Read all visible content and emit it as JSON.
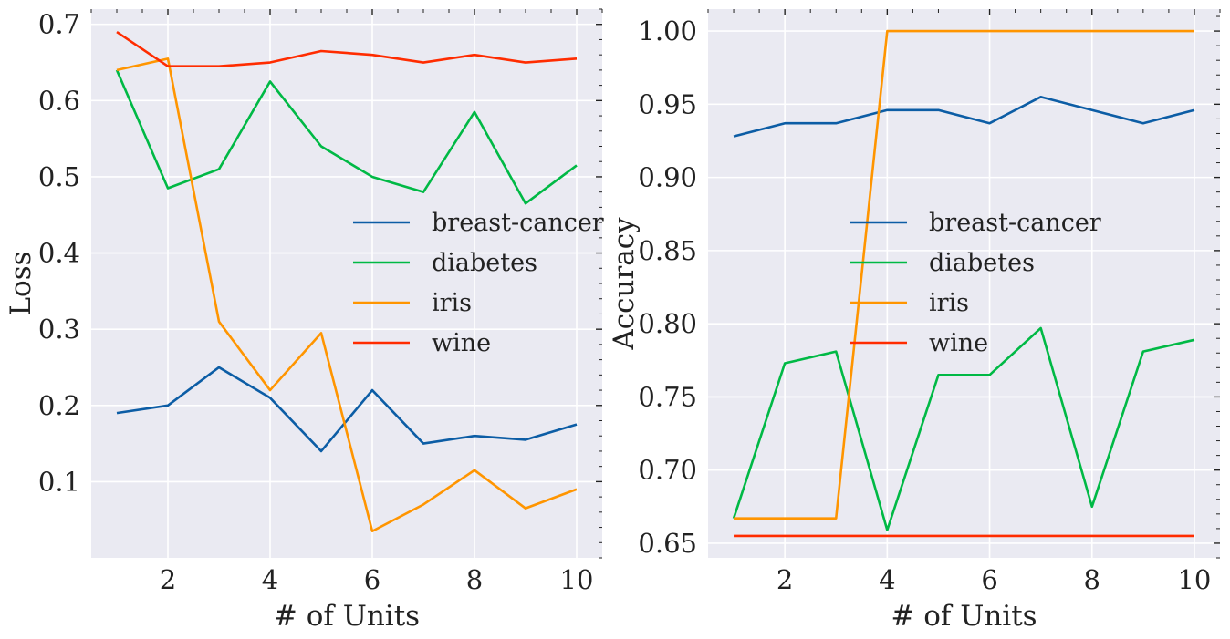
{
  "chart_data": [
    {
      "type": "line",
      "xlabel": "# of Units",
      "ylabel": "Loss",
      "xlim": [
        0.5,
        10.5
      ],
      "ylim": [
        0.0,
        0.72
      ],
      "xticks": [
        2,
        4,
        6,
        8,
        10
      ],
      "xtick_labels": [
        "2",
        "4",
        "6",
        "8",
        "10"
      ],
      "yticks": [
        0.1,
        0.2,
        0.3,
        0.4,
        0.5,
        0.6,
        0.7
      ],
      "ytick_labels": [
        "0.1",
        "0.2",
        "0.3",
        "0.4",
        "0.5",
        "0.6",
        "0.7"
      ],
      "grid": true,
      "legend_position": "center-right",
      "x": [
        1,
        2,
        3,
        4,
        5,
        6,
        7,
        8,
        9,
        10
      ],
      "series": [
        {
          "name": "breast-cancer",
          "color": "#0C5DA5",
          "values": [
            0.19,
            0.2,
            0.25,
            0.21,
            0.14,
            0.22,
            0.15,
            0.16,
            0.155,
            0.175
          ]
        },
        {
          "name": "diabetes",
          "color": "#00B945",
          "values": [
            0.64,
            0.485,
            0.51,
            0.625,
            0.54,
            0.5,
            0.48,
            0.585,
            0.465,
            0.515
          ]
        },
        {
          "name": "iris",
          "color": "#FF9500",
          "values": [
            0.64,
            0.655,
            0.31,
            0.22,
            0.295,
            0.035,
            0.07,
            0.115,
            0.065,
            0.09
          ]
        },
        {
          "name": "wine",
          "color": "#FF2C00",
          "values": [
            0.69,
            0.645,
            0.645,
            0.65,
            0.665,
            0.66,
            0.65,
            0.66,
            0.65,
            0.655
          ]
        }
      ]
    },
    {
      "type": "line",
      "xlabel": "# of Units",
      "ylabel": "Accuracy",
      "xlim": [
        0.5,
        10.5
      ],
      "ylim": [
        0.64,
        1.015
      ],
      "xticks": [
        2,
        4,
        6,
        8,
        10
      ],
      "xtick_labels": [
        "2",
        "4",
        "6",
        "8",
        "10"
      ],
      "yticks": [
        0.65,
        0.7,
        0.75,
        0.8,
        0.85,
        0.9,
        0.95,
        1.0
      ],
      "ytick_labels": [
        "0.65",
        "0.70",
        "0.75",
        "0.80",
        "0.85",
        "0.90",
        "0.95",
        "1.00"
      ],
      "grid": true,
      "legend_position": "center",
      "x": [
        1,
        2,
        3,
        4,
        5,
        6,
        7,
        8,
        9,
        10
      ],
      "series": [
        {
          "name": "breast-cancer",
          "color": "#0C5DA5",
          "values": [
            0.928,
            0.937,
            0.937,
            0.946,
            0.946,
            0.937,
            0.955,
            0.946,
            0.937,
            0.946
          ]
        },
        {
          "name": "diabetes",
          "color": "#00B945",
          "values": [
            0.667,
            0.773,
            0.781,
            0.659,
            0.765,
            0.765,
            0.797,
            0.675,
            0.781,
            0.789
          ]
        },
        {
          "name": "iris",
          "color": "#FF9500",
          "values": [
            0.667,
            0.667,
            0.667,
            1.0,
            1.0,
            1.0,
            1.0,
            1.0,
            1.0,
            1.0
          ]
        },
        {
          "name": "wine",
          "color": "#FF2C00",
          "values": [
            0.655,
            0.655,
            0.655,
            0.655,
            0.655,
            0.655,
            0.655,
            0.655,
            0.655,
            0.655
          ]
        }
      ]
    }
  ]
}
